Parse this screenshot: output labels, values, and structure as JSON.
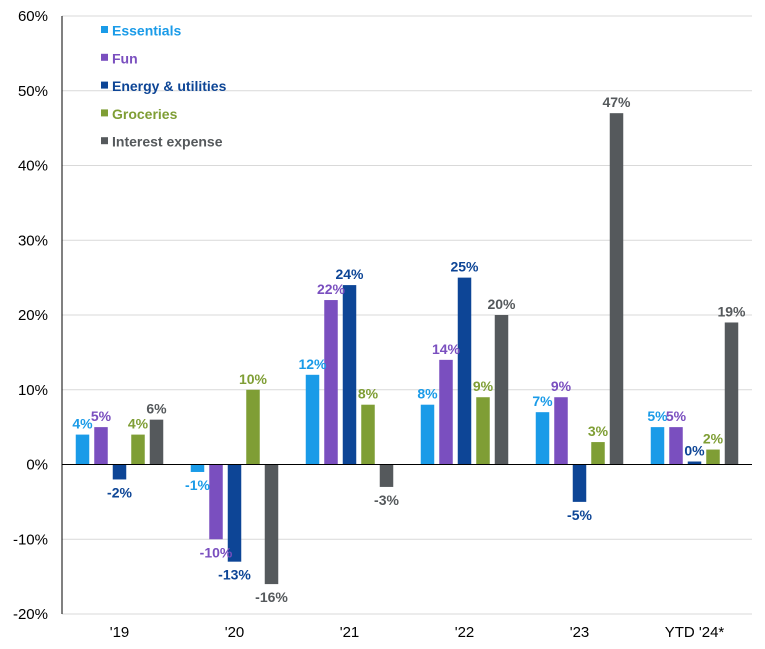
{
  "chart_data": {
    "type": "bar",
    "categories": [
      "'19",
      "'20",
      "'21",
      "'22",
      "'23",
      "YTD '24*"
    ],
    "series": [
      {
        "name": "Essentials",
        "color": "#1a9be8",
        "values": [
          4,
          -1,
          12,
          8,
          7,
          5
        ],
        "labels": [
          "4%",
          "-1%",
          "12%",
          "8%",
          "7%",
          "5%"
        ]
      },
      {
        "name": "Fun",
        "color": "#7a4fbf",
        "values": [
          5,
          -10,
          22,
          14,
          9,
          5
        ],
        "labels": [
          "5%",
          "-10%",
          "22%",
          "14%",
          "9%",
          "5%"
        ]
      },
      {
        "name": "Energy & utilities",
        "color": "#0d4596",
        "values": [
          -2,
          -13,
          24,
          25,
          -5,
          0.4
        ],
        "labels": [
          "-2%",
          "-13%",
          "24%",
          "25%",
          "-5%",
          "0%"
        ]
      },
      {
        "name": "Groceries",
        "color": "#7f9e35",
        "values": [
          4,
          10,
          8,
          9,
          3,
          2
        ],
        "labels": [
          "4%",
          "10%",
          "8%",
          "9%",
          "3%",
          "2%"
        ]
      },
      {
        "name": "Interest expense",
        "color": "#55595c",
        "values": [
          6,
          -16,
          -3,
          20,
          47,
          19
        ],
        "labels": [
          "6%",
          "-16%",
          "-3%",
          "20%",
          "47%",
          "19%"
        ]
      }
    ],
    "y_ticks": [
      "60%",
      "50%",
      "40%",
      "30%",
      "20%",
      "10%",
      "0%",
      "-10%",
      "-20%"
    ],
    "ylim": [
      -20,
      60
    ],
    "grid": true,
    "legend": "top-left"
  }
}
